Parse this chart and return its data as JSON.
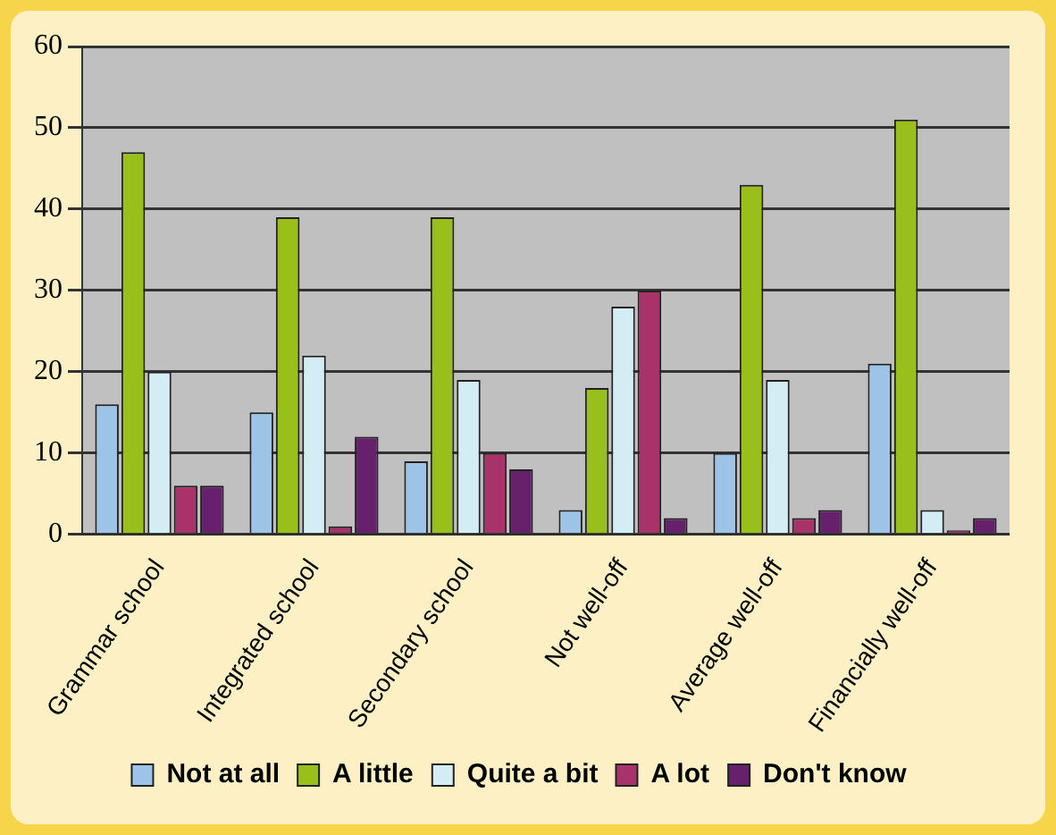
{
  "chart_data": {
    "type": "bar",
    "categories": [
      "Grammar school",
      "Integrated school",
      "Secondary school",
      "Not well-off",
      "Average well-off",
      "Financially well-off"
    ],
    "series": [
      {
        "name": "Not at all",
        "color": "#9dc3e6",
        "values": [
          16,
          15,
          9,
          3,
          10,
          21
        ]
      },
      {
        "name": "A little",
        "color": "#99c01a",
        "values": [
          47,
          39,
          39,
          18,
          43,
          51
        ]
      },
      {
        "name": "Quite a bit",
        "color": "#d4ecf4",
        "values": [
          20,
          22,
          19,
          28,
          19,
          3
        ]
      },
      {
        "name": "A lot",
        "color": "#a8336a",
        "values": [
          6,
          1,
          10,
          30,
          2,
          0.5
        ]
      },
      {
        "name": "Don't know",
        "color": "#66206c",
        "values": [
          6,
          12,
          8,
          2,
          3,
          2
        ]
      }
    ],
    "ylim": [
      0,
      60
    ],
    "yticks": [
      0,
      10,
      20,
      30,
      40,
      50,
      60
    ],
    "grid": "y",
    "legend": "bottom"
  }
}
